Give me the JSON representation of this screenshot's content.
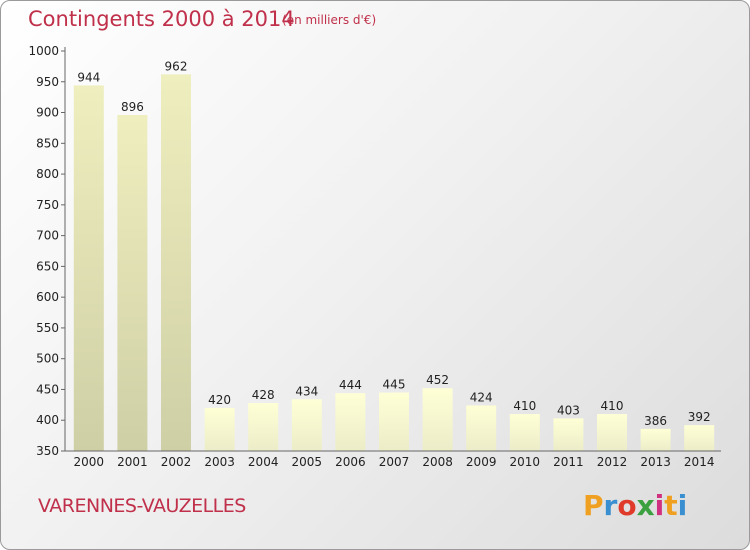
{
  "header": {
    "title": "Contingents 2000 à 2014",
    "subtitle": "(en milliers d'€)"
  },
  "footer": {
    "town": "VARENNES-VAUZELLES",
    "logo_letters": [
      "P",
      "r",
      "o",
      "x",
      "i",
      "t",
      "i"
    ],
    "logo_colors": [
      "#f0a020",
      "#3a8fd0",
      "#e03a2a",
      "#3aa040",
      "#d03080",
      "#f0a020",
      "#3a8fd0"
    ]
  },
  "chart_data": {
    "type": "bar",
    "title": "Contingents 2000 à 2014",
    "subtitle": "(en milliers d'€)",
    "categories": [
      "2000",
      "2001",
      "2002",
      "2003",
      "2004",
      "2005",
      "2006",
      "2007",
      "2008",
      "2009",
      "2010",
      "2011",
      "2012",
      "2013",
      "2014"
    ],
    "values": [
      944,
      896,
      962,
      420,
      428,
      434,
      444,
      445,
      452,
      424,
      410,
      403,
      410,
      386,
      392
    ],
    "ylim": [
      350,
      1000
    ],
    "yticks": [
      350,
      400,
      450,
      500,
      550,
      600,
      650,
      700,
      750,
      800,
      850,
      900,
      950,
      1000
    ],
    "grid": false,
    "colors": {
      "bar_light_top": "#ffffd6",
      "bar_light_bottom": "#ecedc8",
      "bar_dark_top": "#eeeebe",
      "bar_dark_bottom": "#cfcfa6"
    }
  }
}
